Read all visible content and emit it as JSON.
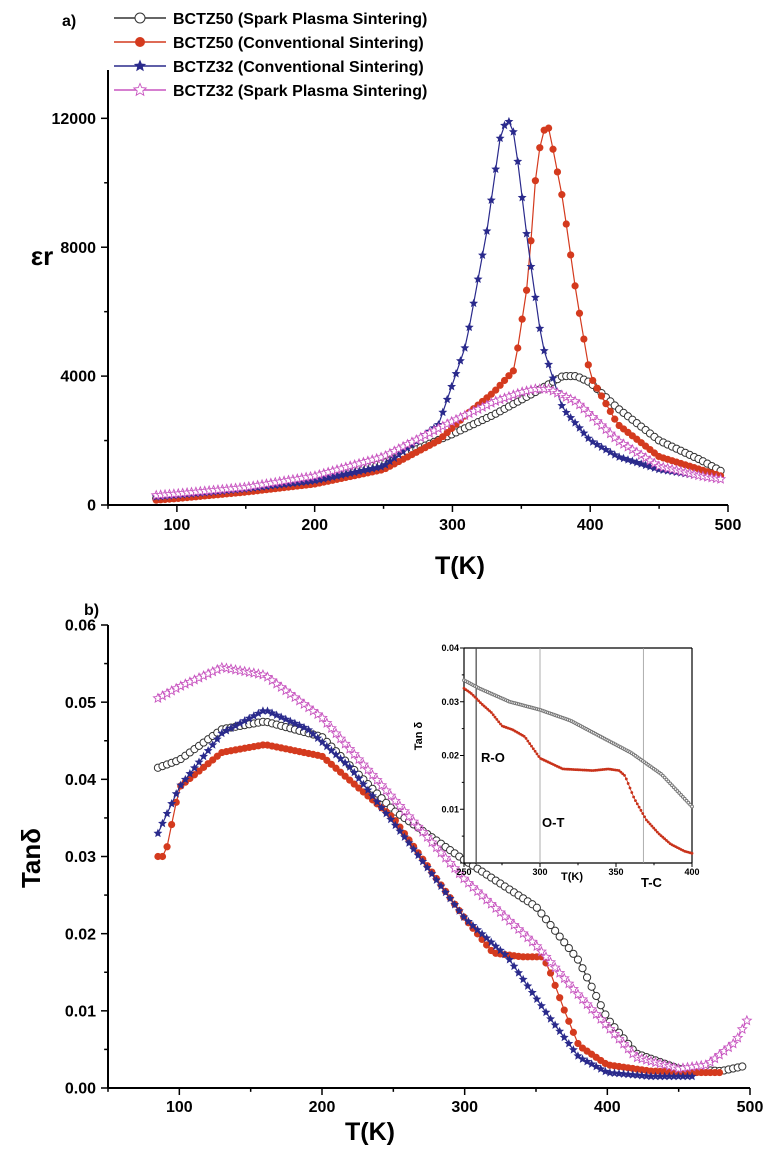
{
  "colors": {
    "bctz50_sps": "#333333",
    "bctz50_cs": "#d43a1e",
    "bctz32_cs": "#2a2a8c",
    "bctz32_sps": "#c855c0",
    "inset_grey": "#777777",
    "inset_red": "#c8321a"
  },
  "chart_data": [
    {
      "type": "scatter",
      "panel_label": "a)",
      "xlabel": "T(K)",
      "ylabel": "εr",
      "xlim": [
        50,
        500
      ],
      "ylim": [
        0,
        13500
      ],
      "xticks": [
        "100",
        "200",
        "300",
        "400",
        "500"
      ],
      "yticks": [
        "0",
        "4000",
        "8000",
        "12000"
      ],
      "legend_position": "top-left, above plot",
      "series": [
        {
          "name": "BCTZ50 (Spark Plasma Sintering)",
          "marker": "open-circle",
          "color": "#333333",
          "x": [
            85,
            100,
            150,
            200,
            250,
            300,
            330,
            360,
            380,
            390,
            400,
            420,
            450,
            480,
            495
          ],
          "y": [
            200,
            250,
            450,
            750,
            1300,
            2200,
            2800,
            3500,
            4000,
            4000,
            3800,
            3000,
            2000,
            1400,
            1050
          ]
        },
        {
          "name": "BCTZ50 (Conventional Sintering)",
          "marker": "filled-circle",
          "color": "#d43a1e",
          "x": [
            85,
            100,
            150,
            200,
            250,
            290,
            310,
            330,
            345,
            355,
            360,
            365,
            370,
            380,
            390,
            400,
            420,
            450,
            480,
            495
          ],
          "y": [
            150,
            200,
            400,
            650,
            1100,
            2000,
            2800,
            3500,
            4200,
            7000,
            10000,
            11600,
            11700,
            9500,
            6500,
            4000,
            2500,
            1500,
            1100,
            900
          ]
        },
        {
          "name": "BCTZ32 (Conventional Sintering)",
          "marker": "filled-star",
          "color": "#2a2a8c",
          "x": [
            85,
            100,
            150,
            200,
            250,
            290,
            310,
            325,
            335,
            340,
            345,
            355,
            365,
            380,
            400,
            420,
            450,
            480,
            495
          ],
          "y": [
            250,
            300,
            500,
            750,
            1200,
            2500,
            5000,
            8500,
            11500,
            12000,
            11500,
            8000,
            5000,
            3000,
            2000,
            1500,
            1100,
            900,
            800
          ]
        },
        {
          "name": "BCTZ32 (Spark Plasma Sintering)",
          "marker": "open-star",
          "color": "#c855c0",
          "x": [
            85,
            100,
            150,
            200,
            250,
            300,
            330,
            350,
            360,
            370,
            390,
            420,
            450,
            480,
            495
          ],
          "y": [
            300,
            350,
            550,
            900,
            1500,
            2600,
            3200,
            3500,
            3600,
            3600,
            3200,
            2000,
            1200,
            900,
            800
          ]
        }
      ]
    },
    {
      "type": "scatter",
      "panel_label": "b)",
      "xlabel": "T(K)",
      "ylabel": "Tanδ",
      "xlim": [
        50,
        500
      ],
      "ylim": [
        0,
        0.06
      ],
      "xticks": [
        "100",
        "200",
        "300",
        "400",
        "500"
      ],
      "yticks": [
        "0.00",
        "0.01",
        "0.02",
        "0.03",
        "0.04",
        "0.05",
        "0.06"
      ],
      "series": [
        {
          "name": "BCTZ50 (Spark Plasma Sintering)",
          "marker": "open-circle",
          "color": "#333333",
          "x": [
            85,
            100,
            130,
            160,
            200,
            250,
            300,
            350,
            380,
            400,
            420,
            450,
            480,
            495
          ],
          "y": [
            0.0415,
            0.0425,
            0.0465,
            0.0475,
            0.0455,
            0.036,
            0.0295,
            0.0235,
            0.0165,
            0.009,
            0.0045,
            0.0025,
            0.0022,
            0.0028
          ]
        },
        {
          "name": "BCTZ50 (Conventional Sintering)",
          "marker": "filled-circle",
          "color": "#d43a1e",
          "x": [
            85,
            90,
            100,
            130,
            160,
            200,
            250,
            300,
            320,
            340,
            355,
            360,
            370,
            380,
            400,
            430,
            460,
            480
          ],
          "y": [
            0.03,
            0.03,
            0.039,
            0.0435,
            0.0445,
            0.043,
            0.035,
            0.022,
            0.0175,
            0.017,
            0.017,
            0.015,
            0.01,
            0.0055,
            0.003,
            0.0022,
            0.002,
            0.002
          ]
        },
        {
          "name": "BCTZ32 (Conventional Sintering)",
          "marker": "filled-star",
          "color": "#2a2a8c",
          "x": [
            85,
            100,
            130,
            160,
            190,
            220,
            260,
            300,
            330,
            360,
            380,
            400,
            430,
            460
          ],
          "y": [
            0.033,
            0.039,
            0.046,
            0.049,
            0.0465,
            0.0415,
            0.032,
            0.022,
            0.017,
            0.009,
            0.004,
            0.002,
            0.0015,
            0.0015
          ]
        },
        {
          "name": "BCTZ32 (Spark Plasma Sintering)",
          "marker": "open-star",
          "color": "#c855c0",
          "x": [
            85,
            100,
            130,
            160,
            200,
            250,
            300,
            350,
            380,
            420,
            450,
            470,
            490,
            500
          ],
          "y": [
            0.0505,
            0.052,
            0.0545,
            0.0535,
            0.048,
            0.0375,
            0.027,
            0.0185,
            0.012,
            0.004,
            0.0025,
            0.003,
            0.006,
            0.0095
          ]
        }
      ]
    },
    {
      "type": "line",
      "panel_label": "inset",
      "xlabel": "T(K)",
      "ylabel": "Tan δ",
      "xlim": [
        250,
        400
      ],
      "ylim": [
        0,
        0.04
      ],
      "xticks": [
        "250",
        "300",
        "350",
        "400"
      ],
      "yticks": [
        "0.01",
        "0.02",
        "0.03",
        "0.04"
      ],
      "annotations": [
        "R-O",
        "O-T",
        "T-C"
      ],
      "transition_lines_x": [
        258,
        300,
        368
      ],
      "series": [
        {
          "marker": "open-circle",
          "color": "#777777",
          "x": [
            250,
            260,
            280,
            300,
            320,
            340,
            360,
            380,
            400
          ],
          "y": [
            0.034,
            0.0325,
            0.03,
            0.0285,
            0.0265,
            0.0235,
            0.0205,
            0.0165,
            0.0105
          ]
        },
        {
          "marker": "filled-dot",
          "color": "#c8321a",
          "x": [
            250,
            255,
            262,
            268,
            275,
            282,
            290,
            300,
            315,
            335,
            345,
            352,
            356,
            362,
            370,
            378,
            386,
            395,
            400
          ],
          "y": [
            0.0325,
            0.0315,
            0.0295,
            0.028,
            0.0255,
            0.0248,
            0.0235,
            0.0195,
            0.0175,
            0.0172,
            0.0175,
            0.0172,
            0.0162,
            0.012,
            0.008,
            0.0055,
            0.0035,
            0.0022,
            0.0018
          ]
        }
      ]
    }
  ]
}
